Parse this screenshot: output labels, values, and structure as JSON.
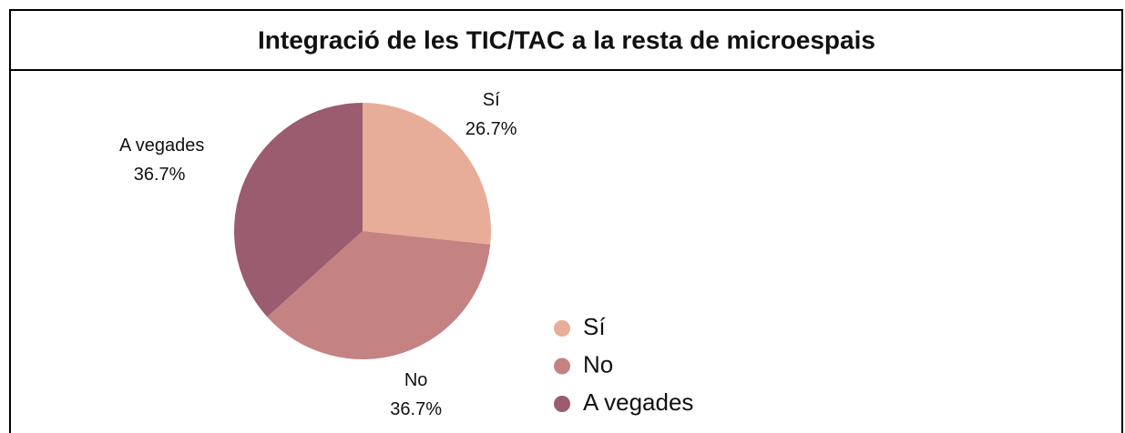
{
  "chart_data": {
    "type": "pie",
    "title": "Integració de les TIC/TAC a la resta de microespais",
    "categories": [
      "Sí",
      "No",
      "A vegades"
    ],
    "values": [
      26.7,
      36.7,
      36.7
    ],
    "value_labels": [
      "26.7%",
      "36.7%",
      "36.7%"
    ],
    "colors": [
      "#e8ad98",
      "#c48283",
      "#9a5c6e"
    ],
    "legend": "bottom-right"
  }
}
